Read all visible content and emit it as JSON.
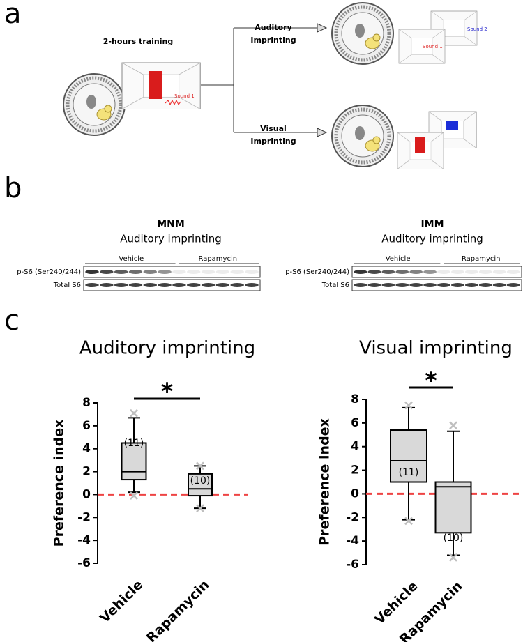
{
  "panel_a": {
    "label": "a",
    "training": "2-hours training",
    "training_sound": "Sound 1",
    "auditory": [
      "Auditory",
      "Imprinting"
    ],
    "auditory_sounds": [
      "Sound 1",
      "Sound 2"
    ],
    "visual": [
      "Visual",
      "Imprinting"
    ]
  },
  "panel_b": {
    "label": "b",
    "blots": [
      {
        "region": "MNM",
        "condition": "Auditory imprinting",
        "groups": [
          "Vehicle",
          "Rapamycin"
        ],
        "rows": [
          "p-S6 (Ser240/244)",
          "Total S6"
        ]
      },
      {
        "region": "IMM",
        "condition": "Auditory imprinting",
        "groups": [
          "Vehicle",
          "Rapamycin"
        ],
        "rows": [
          "p-S6 (Ser240/244)",
          "Total S6"
        ]
      }
    ]
  },
  "panel_c": {
    "label": "c"
  },
  "chart_data": [
    {
      "type": "box",
      "title": "Auditory imprinting",
      "ylabel": "Preference index",
      "categories": [
        "Vehicle",
        "Rapamycin"
      ],
      "boxes": [
        {
          "whisker_low": 0.2,
          "q1": 1.3,
          "median": 2.0,
          "q3": 4.5,
          "whisker_high": 6.7,
          "extremes": [
            7.1,
            -0.1
          ],
          "n_label": "(11)"
        },
        {
          "whisker_low": -1.2,
          "q1": -0.1,
          "median": 0.5,
          "q3": 1.8,
          "whisker_high": 2.5,
          "extremes": [
            2.5,
            -1.2
          ],
          "n_label": "(10)"
        }
      ],
      "box_color": "#d9d9d9",
      "extreme_color": "#bfbfbf",
      "reference_line": 0,
      "reference_color": "#ee4444",
      "significance": "*",
      "ylim": [
        -6,
        8
      ],
      "yticks": [
        -6,
        -4,
        -2,
        0,
        2,
        4,
        6,
        8
      ]
    },
    {
      "type": "box",
      "title": "Visual imprinting",
      "ylabel": "Preference index",
      "categories": [
        "Vehicle",
        "Rapamycin"
      ],
      "boxes": [
        {
          "whisker_low": -2.2,
          "q1": 1.0,
          "median": 2.8,
          "q3": 5.4,
          "whisker_high": 7.3,
          "extremes": [
            7.5,
            -2.3
          ],
          "n_label": "(11)"
        },
        {
          "whisker_low": -5.2,
          "q1": -3.3,
          "median": 0.6,
          "q3": 1.0,
          "whisker_high": 5.3,
          "extremes": [
            5.8,
            -5.4
          ],
          "n_label": "(10)"
        }
      ],
      "box_color": "#d9d9d9",
      "extreme_color": "#bfbfbf",
      "reference_line": 0,
      "reference_color": "#ee4444",
      "significance": "*",
      "ylim": [
        -6,
        8
      ],
      "yticks": [
        -6,
        -4,
        -2,
        0,
        2,
        4,
        6,
        8
      ]
    }
  ]
}
